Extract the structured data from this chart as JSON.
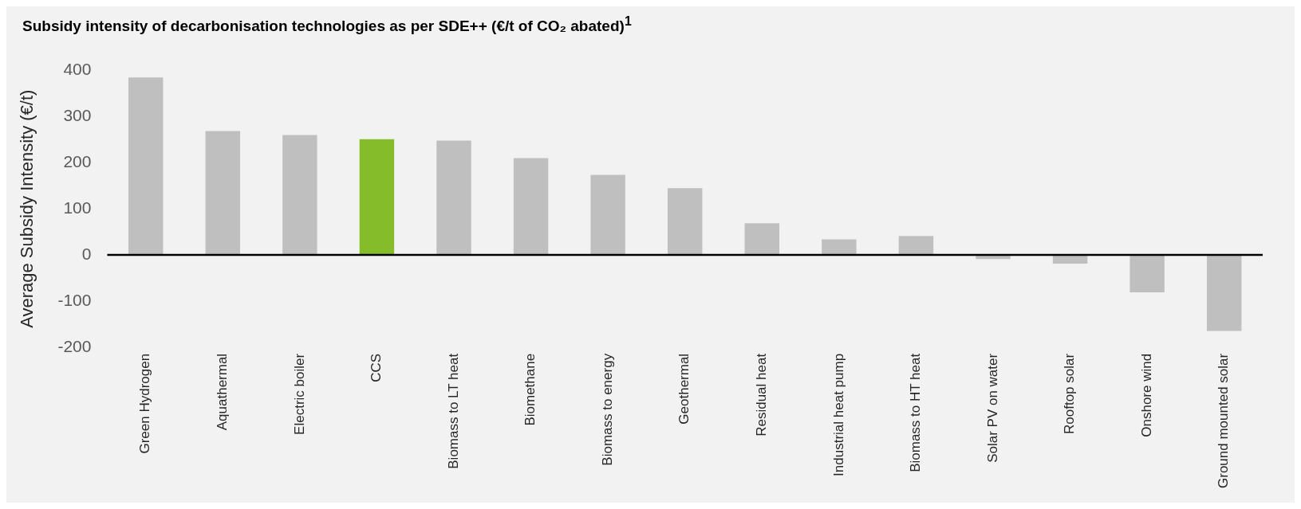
{
  "chart_data": {
    "type": "bar",
    "title": "Subsidy intensity of decarbonisation technologies as per SDE++ (€/t of CO₂ abated)$^{1}$",
    "ylabel": "Average Subsidy Intensity (€/t)",
    "categories": [
      "Green Hydrogen",
      "Aquathermal",
      "Electric boiler",
      "CCS",
      "Biomass to LT heat",
      "Biomethane",
      "Biomass to energy",
      "Geothermal",
      "Residual heat",
      "Industrial heat pump",
      "Biomass to HT heat",
      "Solar PV on water",
      "Rooftop solar",
      "Onshore wind",
      "Ground mounted solar"
    ],
    "values": [
      385,
      269,
      260,
      251,
      248,
      210,
      174,
      145,
      69,
      34,
      41,
      -9,
      -19,
      -81,
      -165
    ],
    "colors": [
      "#bfbfbf",
      "#bfbfbf",
      "#bfbfbf",
      "#84bc2a",
      "#bfbfbf",
      "#bfbfbf",
      "#bfbfbf",
      "#bfbfbf",
      "#bfbfbf",
      "#bfbfbf",
      "#bfbfbf",
      "#bfbfbf",
      "#bfbfbf",
      "#bfbfbf",
      "#bfbfbf"
    ],
    "ref_lines": [
      {
        "axis": "y",
        "value": 0,
        "color": "#000000"
      }
    ],
    "ylim": [
      -200,
      400
    ],
    "yticks": [
      -200,
      -100,
      0,
      100,
      200,
      300,
      400
    ],
    "grid": false,
    "legend": false
  }
}
